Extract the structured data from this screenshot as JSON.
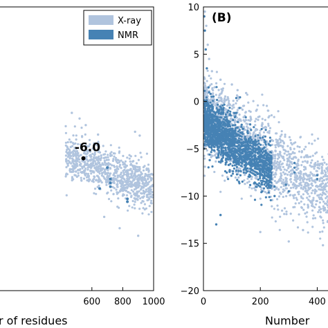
{
  "chart_data": [
    {
      "type": "scatter",
      "panel_label": "",
      "xlabel": "r of residues",
      "ylabel": "",
      "xlim": [
        0,
        1000
      ],
      "ylim": [
        -20,
        10
      ],
      "x_ticks": [
        "600",
        "800",
        "1000"
      ],
      "x_tick_values": [
        600,
        800,
        1000
      ],
      "legend": {
        "position": "top-right",
        "entries": [
          {
            "label": "X-ray",
            "color": "#b0c4de"
          },
          {
            "label": "NMR",
            "color": "#4682b4"
          }
        ]
      },
      "annotation": {
        "text": "-6.0",
        "x": 545,
        "y": -6.0
      },
      "series": [
        {
          "name": "X-ray",
          "color": "#b0c4de",
          "cloud": [
            [
              430,
              -5.8
            ],
            [
              500,
              -6.3
            ],
            [
              600,
              -6.8
            ],
            [
              700,
              -7.4
            ],
            [
              800,
              -8.0
            ],
            [
              900,
              -8.6
            ],
            [
              1000,
              -9.1
            ]
          ],
          "spread": 2.6,
          "density": 900,
          "outliers": [
            [
              880,
              -3.2
            ],
            [
              910,
              -3.6
            ],
            [
              900,
              -14.2
            ],
            [
              780,
              -13.4
            ],
            [
              1000,
              -12.8
            ],
            [
              470,
              -1.2
            ],
            [
              520,
              -1.8
            ],
            [
              560,
              -2.5
            ],
            [
              640,
              -3.5
            ],
            [
              680,
              -12.2
            ]
          ]
        },
        {
          "name": "NMR",
          "color": "#4682b4",
          "points": [
            [
              720,
              -8.2
            ],
            [
              720,
              -8.6
            ],
            [
              720,
              -9.0
            ],
            [
              650,
              -9.2
            ],
            [
              830,
              -10.3
            ],
            [
              830,
              -10.6
            ],
            [
              700,
              -7.0
            ]
          ]
        }
      ]
    },
    {
      "type": "scatter",
      "panel_label": "(B)",
      "xlabel": "Number",
      "ylabel": "",
      "xlim": [
        0,
        450
      ],
      "ylim": [
        -20,
        10
      ],
      "x_ticks": [
        "0",
        "200",
        "400"
      ],
      "x_tick_values": [
        0,
        200,
        400
      ],
      "y_ticks": [
        "10",
        "5",
        "0",
        "−5",
        "−10",
        "−15",
        "−20"
      ],
      "y_tick_values": [
        10,
        5,
        0,
        -5,
        -10,
        -15,
        -20
      ],
      "series": [
        {
          "name": "X-ray",
          "color": "#b0c4de",
          "cloud": [
            [
              0,
              -1.0
            ],
            [
              50,
              -2.5
            ],
            [
              100,
              -3.5
            ],
            [
              150,
              -4.5
            ],
            [
              200,
              -5.5
            ],
            [
              250,
              -6.5
            ],
            [
              300,
              -7.5
            ],
            [
              350,
              -8.3
            ],
            [
              400,
              -9.0
            ],
            [
              450,
              -9.6
            ]
          ],
          "spread": 4.5,
          "density": 1800,
          "outliers": [
            [
              5,
              9.5
            ],
            [
              10,
              8.0
            ],
            [
              15,
              6.0
            ],
            [
              20,
              4.5
            ],
            [
              30,
              3.2
            ],
            [
              60,
              2.3
            ],
            [
              100,
              1.8
            ],
            [
              120,
              1.2
            ],
            [
              150,
              0.9
            ],
            [
              200,
              -13.8
            ],
            [
              300,
              -14.8
            ],
            [
              350,
              -13.6
            ],
            [
              420,
              -15.2
            ]
          ]
        },
        {
          "name": "NMR",
          "color": "#4682b4",
          "cloud": [
            [
              0,
              -2.0
            ],
            [
              30,
              -2.8
            ],
            [
              60,
              -3.6
            ],
            [
              100,
              -4.5
            ],
            [
              140,
              -5.2
            ],
            [
              180,
              -6.0
            ],
            [
              210,
              -6.6
            ],
            [
              240,
              -7.2
            ]
          ],
          "spread": 3.2,
          "density": 1400,
          "outliers": [
            [
              3,
              9.0
            ],
            [
              5,
              7.5
            ],
            [
              8,
              5.5
            ],
            [
              12,
              3.5
            ],
            [
              18,
              1.5
            ],
            [
              25,
              0.8
            ],
            [
              45,
              -13.0
            ],
            [
              60,
              -12.0
            ],
            [
              320,
              -6.5
            ],
            [
              320,
              -7.0
            ],
            [
              320,
              -7.5
            ],
            [
              400,
              -7.8
            ],
            [
              400,
              -8.2
            ],
            [
              250,
              -9.0
            ],
            [
              250,
              -10.0
            ],
            [
              300,
              -9.5
            ],
            [
              290,
              -8.8
            ]
          ]
        }
      ]
    }
  ]
}
